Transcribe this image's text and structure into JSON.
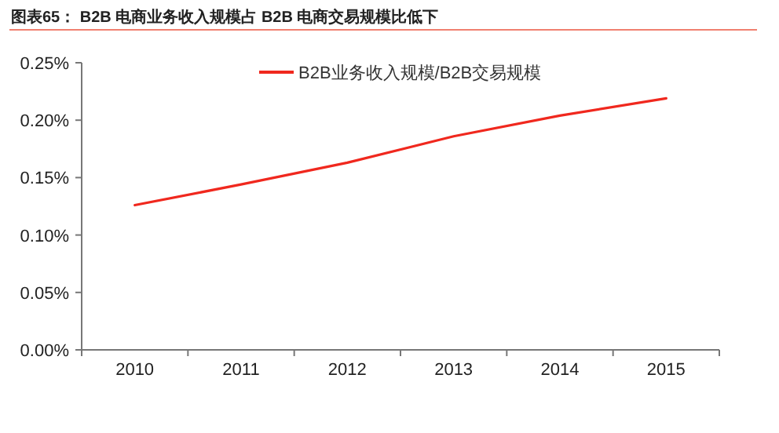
{
  "chart_data": {
    "type": "line",
    "title": "图表65： B2B 电商业务收入规模占 B2B 电商交易规模比低下",
    "categories": [
      "2010",
      "2011",
      "2012",
      "2013",
      "2014",
      "2015"
    ],
    "series": [
      {
        "name": "B2B业务收入规模/B2B交易规模",
        "color": "#f0281e",
        "values": [
          0.126,
          0.144,
          0.163,
          0.186,
          0.204,
          0.219
        ]
      }
    ],
    "ylim": [
      0,
      0.25
    ],
    "yticks": [
      {
        "value": 0,
        "label": "0.00%"
      },
      {
        "value": 0.05,
        "label": "0.05%"
      },
      {
        "value": 0.1,
        "label": "0.10%"
      },
      {
        "value": 0.15,
        "label": "0.15%"
      },
      {
        "value": 0.2,
        "label": "0.20%"
      },
      {
        "value": 0.25,
        "label": "0.25%"
      }
    ],
    "legend": "top",
    "grid": false,
    "marker": "none",
    "line_style": "solid"
  }
}
